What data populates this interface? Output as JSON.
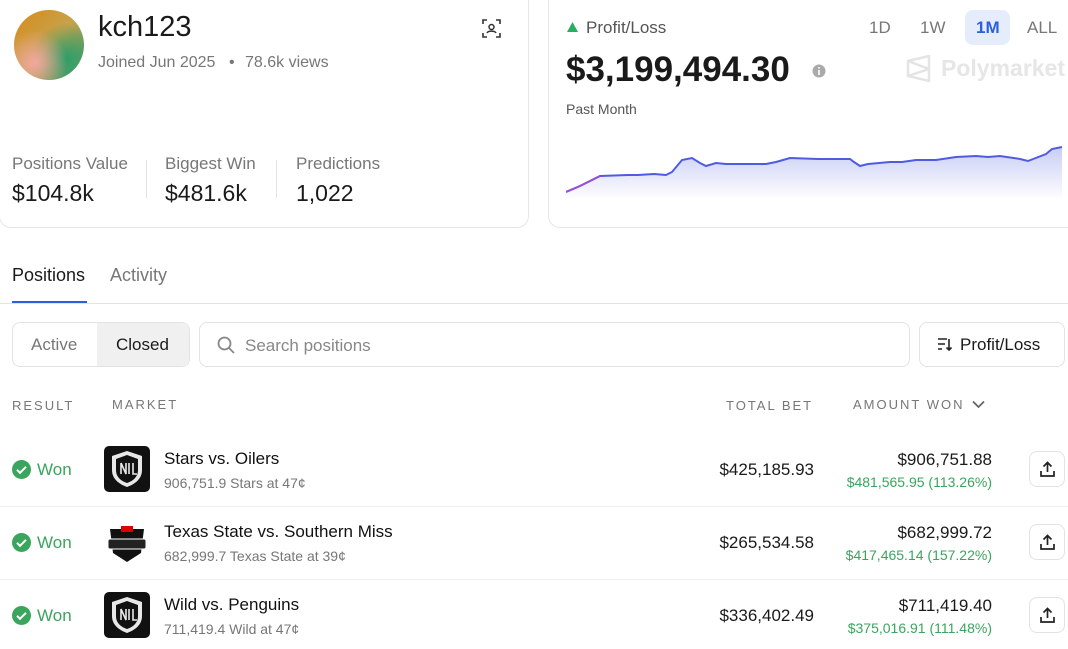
{
  "profile": {
    "username": "kch123",
    "joined": "Joined Jun 2025",
    "views": "78.6k views",
    "stats": [
      {
        "label": "Positions Value",
        "value": "$104.8k"
      },
      {
        "label": "Biggest Win",
        "value": "$481.6k"
      },
      {
        "label": "Predictions",
        "value": "1,022"
      }
    ]
  },
  "pnl": {
    "label": "Profit/Loss",
    "value": "$3,199,494.30",
    "period": "Past Month",
    "ranges": [
      "1D",
      "1W",
      "1M",
      "ALL"
    ],
    "brand": "Polymarket"
  },
  "tabs": [
    "Positions",
    "Activity"
  ],
  "filters": [
    "Active",
    "Closed"
  ],
  "search": "Search positions",
  "sort": "Profit/Loss",
  "table": {
    "headers": [
      "RESULT",
      "MARKET",
      "TOTAL BET",
      "AMOUNT WON"
    ],
    "rows": [
      {
        "result": "Won",
        "title": "Stars vs. Oilers",
        "subtitle": "906,751.9 Stars at 47¢",
        "total_bet": "$425,185.93",
        "amount_won": "$906,751.88",
        "profit": "$481,565.95 (113.26%)"
      },
      {
        "result": "Won",
        "title": "Texas State vs. Southern Miss",
        "subtitle": "682,999.7 Texas State at 39¢",
        "total_bet": "$265,534.58",
        "amount_won": "$682,999.72",
        "profit": "$417,465.14 (157.22%)"
      },
      {
        "result": "Won",
        "title": "Wild vs. Penguins",
        "subtitle": "711,419.4 Wild at 47¢",
        "total_bet": "$336,402.49",
        "amount_won": "$711,419.40",
        "profit": "$375,016.91 (111.48%)"
      }
    ]
  }
}
